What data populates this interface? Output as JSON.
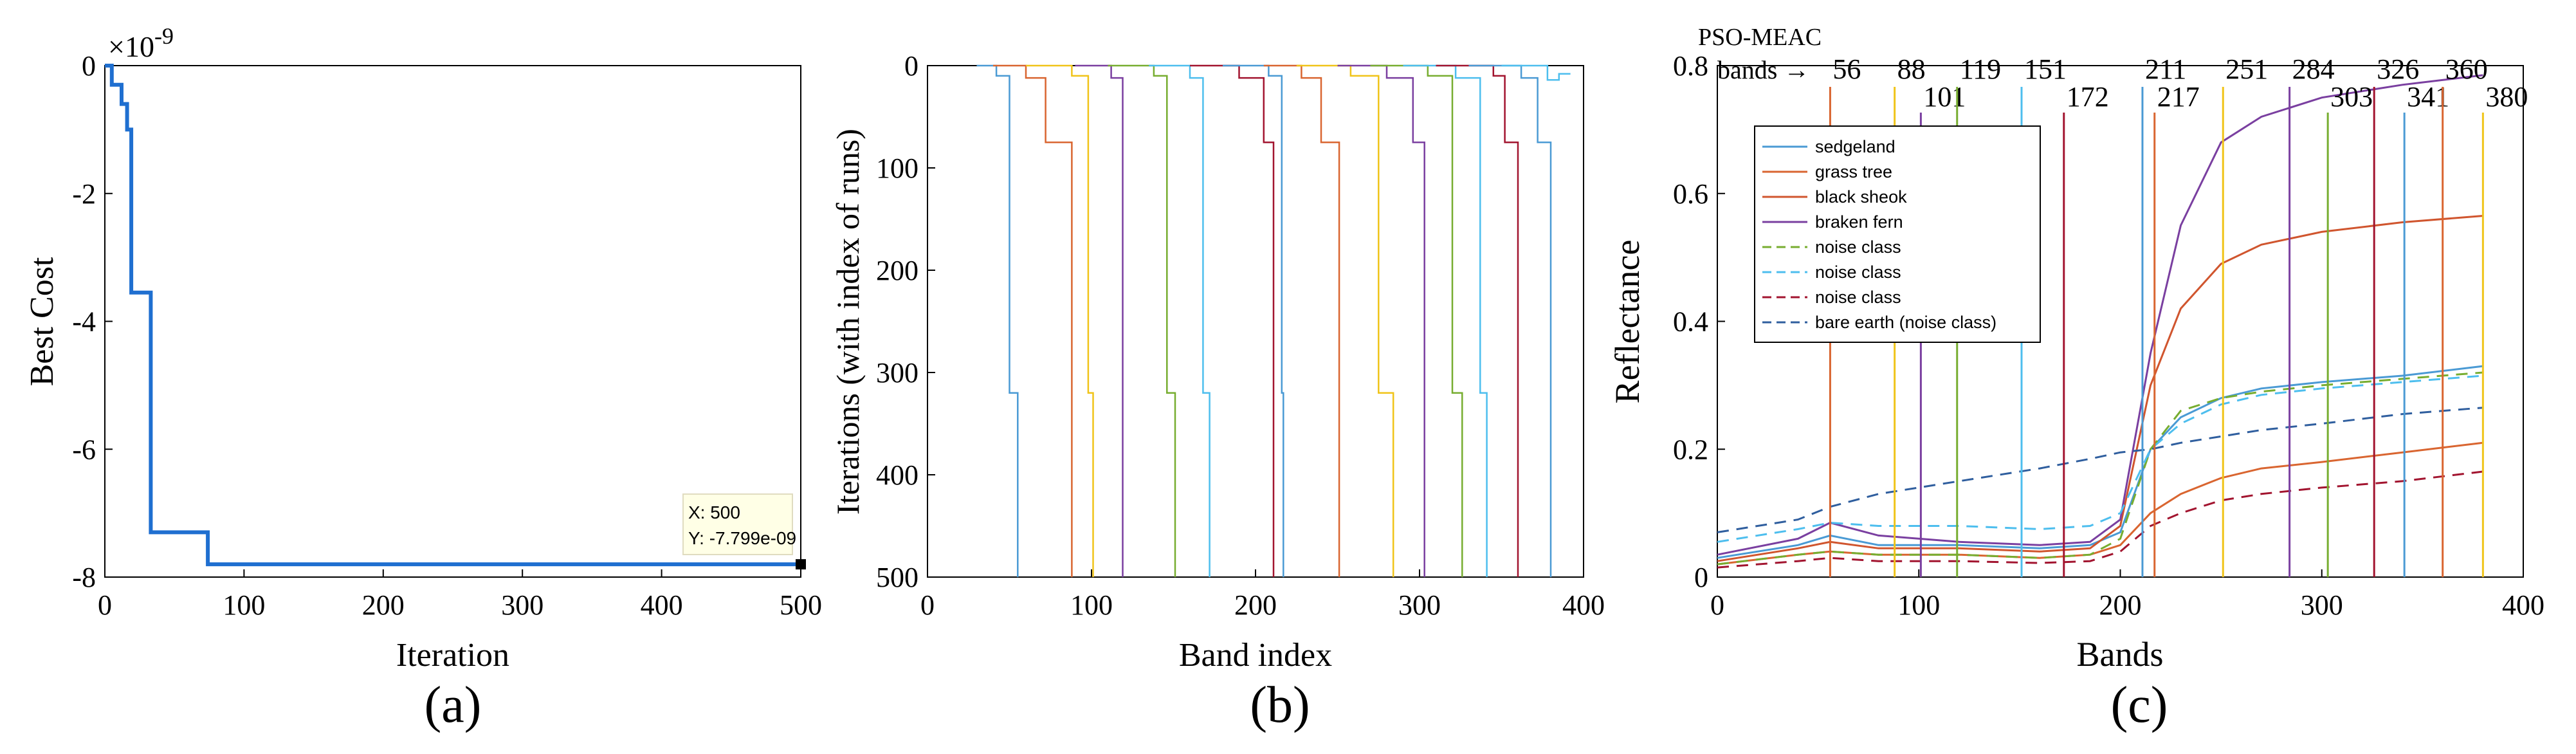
{
  "chart_data": [
    {
      "type": "line",
      "panel_label": "(a)",
      "xlabel": "Iteration",
      "ylabel": "Best Cost",
      "xlim": [
        0,
        500
      ],
      "ylim": [
        -8,
        0
      ],
      "exponent": "×10",
      "exponent_power": "-9",
      "xticks": [
        "0",
        "100",
        "200",
        "300",
        "400",
        "500"
      ],
      "yticks": [
        "0",
        "-2",
        "-4",
        "-6",
        "-8"
      ],
      "line_color": "#1f6fd0",
      "series": [
        {
          "name": "Best Cost",
          "x": [
            0,
            5,
            5,
            12,
            12,
            16,
            16,
            19,
            19,
            33,
            33,
            74,
            74,
            323,
            323,
            500
          ],
          "y": [
            0,
            0,
            -0.3,
            -0.3,
            -0.6,
            -0.6,
            -1.0,
            -1.0,
            -3.55,
            -3.55,
            -7.3,
            -7.3,
            -7.8,
            -7.8,
            -7.8,
            -7.8
          ]
        }
      ],
      "datatip": {
        "x": 500,
        "y": -7.8,
        "line1": "X: 500",
        "line2": "Y: -7.799e-09"
      }
    },
    {
      "type": "line",
      "panel_label": "(b)",
      "xlabel": "Band index",
      "ylabel": "Iterations (with index of runs)",
      "xlim": [
        0,
        400
      ],
      "ylim": [
        0,
        500
      ],
      "y_reversed": true,
      "xticks": [
        "0",
        "100",
        "200",
        "300",
        "400"
      ],
      "yticks": [
        "0",
        "100",
        "200",
        "300",
        "400",
        "500"
      ],
      "series": [
        {
          "name": "b1",
          "color": "#4a9ad4",
          "x": [
            30,
            42,
            42,
            50,
            50,
            55,
            55
          ],
          "y": [
            0,
            0,
            10,
            10,
            320,
            320,
            500
          ]
        },
        {
          "name": "b2",
          "color": "#d96530",
          "x": [
            40,
            60,
            60,
            72,
            72,
            88,
            88
          ],
          "y": [
            0,
            0,
            12,
            12,
            75,
            75,
            500
          ]
        },
        {
          "name": "b3",
          "color": "#f0c419",
          "x": [
            60,
            88,
            88,
            98,
            98,
            101,
            101
          ],
          "y": [
            0,
            0,
            10,
            10,
            320,
            320,
            500
          ]
        },
        {
          "name": "b4",
          "color": "#7a3fa0",
          "x": [
            90,
            112,
            112,
            119,
            119
          ],
          "y": [
            0,
            0,
            12,
            12,
            500
          ]
        },
        {
          "name": "b5",
          "color": "#77ad30",
          "x": [
            110,
            138,
            138,
            146,
            146,
            151,
            151
          ],
          "y": [
            0,
            0,
            10,
            10,
            320,
            320,
            500
          ]
        },
        {
          "name": "b6",
          "color": "#4dbeee",
          "x": [
            135,
            160,
            160,
            168,
            168,
            172,
            172
          ],
          "y": [
            0,
            0,
            12,
            12,
            320,
            320,
            500
          ]
        },
        {
          "name": "b7",
          "color": "#a2142f",
          "x": [
            160,
            190,
            190,
            205,
            205,
            211,
            211
          ],
          "y": [
            0,
            0,
            12,
            12,
            75,
            75,
            500
          ]
        },
        {
          "name": "b8",
          "color": "#4a9ad4",
          "x": [
            180,
            208,
            208,
            216,
            216,
            217,
            217
          ],
          "y": [
            0,
            0,
            10,
            10,
            320,
            320,
            500
          ]
        },
        {
          "name": "b9",
          "color": "#d96530",
          "x": [
            205,
            228,
            228,
            240,
            240,
            251,
            251
          ],
          "y": [
            0,
            0,
            12,
            12,
            75,
            75,
            500
          ]
        },
        {
          "name": "b10",
          "color": "#f0c419",
          "x": [
            225,
            258,
            258,
            275,
            275,
            284,
            284
          ],
          "y": [
            0,
            0,
            10,
            10,
            320,
            320,
            500
          ]
        },
        {
          "name": "b11",
          "color": "#7a3fa0",
          "x": [
            250,
            280,
            280,
            296,
            296,
            303,
            303
          ],
          "y": [
            0,
            0,
            12,
            12,
            75,
            75,
            500
          ]
        },
        {
          "name": "b12",
          "color": "#77ad30",
          "x": [
            270,
            305,
            305,
            320,
            320,
            326,
            326
          ],
          "y": [
            0,
            0,
            10,
            10,
            320,
            320,
            500
          ]
        },
        {
          "name": "b13",
          "color": "#4dbeee",
          "x": [
            290,
            322,
            322,
            337,
            337,
            341,
            341
          ],
          "y": [
            0,
            0,
            12,
            12,
            320,
            320,
            500
          ]
        },
        {
          "name": "b14",
          "color": "#a2142f",
          "x": [
            310,
            345,
            345,
            352,
            352,
            360,
            360
          ],
          "y": [
            0,
            0,
            10,
            10,
            75,
            75,
            500
          ]
        },
        {
          "name": "b15",
          "color": "#4a9ad4",
          "x": [
            330,
            362,
            362,
            372,
            372,
            380,
            380
          ],
          "y": [
            0,
            0,
            12,
            12,
            75,
            75,
            500
          ]
        },
        {
          "name": "b16",
          "color": "#4dbeee",
          "x": [
            350,
            378,
            378,
            385,
            385,
            392
          ],
          "y": [
            0,
            0,
            14,
            14,
            8,
            8
          ]
        }
      ]
    },
    {
      "type": "line",
      "panel_label": "(c)",
      "title_small": "PSO-MEAC",
      "bands_label": "bands →",
      "xlabel": "Bands",
      "ylabel": "Reflectance",
      "xlim": [
        0,
        400
      ],
      "ylim": [
        0,
        0.8
      ],
      "xticks": [
        "0",
        "100",
        "200",
        "300",
        "400"
      ],
      "yticks": [
        "0",
        "0.2",
        "0.4",
        "0.6",
        "0.8"
      ],
      "selected_bands": [
        {
          "band": 56,
          "label": "56",
          "row": 1,
          "color": "#d96530"
        },
        {
          "band": 88,
          "label": "88",
          "row": 1,
          "color": "#f0c419"
        },
        {
          "band": 101,
          "label": "101",
          "row": 2,
          "color": "#7a3fa0"
        },
        {
          "band": 119,
          "label": "119",
          "row": 1,
          "color": "#77ad30"
        },
        {
          "band": 151,
          "label": "151",
          "row": 1,
          "color": "#4dbeee"
        },
        {
          "band": 172,
          "label": "172",
          "row": 2,
          "color": "#a2142f"
        },
        {
          "band": 211,
          "label": "211",
          "row": 1,
          "color": "#4a9ad4"
        },
        {
          "band": 217,
          "label": "217",
          "row": 2,
          "color": "#d96530"
        },
        {
          "band": 251,
          "label": "251",
          "row": 1,
          "color": "#f0c419"
        },
        {
          "band": 284,
          "label": "284",
          "row": 1,
          "color": "#7a3fa0"
        },
        {
          "band": 303,
          "label": "303",
          "row": 2,
          "color": "#77ad30"
        },
        {
          "band": 326,
          "label": "326",
          "row": 1,
          "color": "#a2142f"
        },
        {
          "band": 341,
          "label": "341",
          "row": 2,
          "color": "#4a9ad4"
        },
        {
          "band": 360,
          "label": "360",
          "row": 1,
          "color": "#d96530"
        },
        {
          "band": 380,
          "label": "380",
          "row": 2,
          "color": "#f0c419"
        }
      ],
      "series": [
        {
          "name": "sedgeland",
          "color": "#4a9ad4",
          "dashed": false,
          "x": [
            0,
            40,
            56,
            80,
            120,
            160,
            185,
            200,
            215,
            230,
            250,
            270,
            300,
            340,
            380
          ],
          "y": [
            0.03,
            0.05,
            0.065,
            0.05,
            0.05,
            0.045,
            0.05,
            0.07,
            0.2,
            0.25,
            0.28,
            0.295,
            0.305,
            0.315,
            0.33
          ]
        },
        {
          "name": "grass tree",
          "color": "#d96530",
          "dashed": false,
          "x": [
            0,
            40,
            56,
            80,
            120,
            160,
            185,
            200,
            215,
            230,
            250,
            270,
            300,
            340,
            380
          ],
          "y": [
            0.02,
            0.035,
            0.04,
            0.035,
            0.035,
            0.03,
            0.035,
            0.05,
            0.1,
            0.13,
            0.155,
            0.17,
            0.18,
            0.195,
            0.21
          ]
        },
        {
          "name": "black sheok",
          "color": "#d0552e",
          "dashed": false,
          "x": [
            0,
            40,
            56,
            80,
            120,
            160,
            185,
            200,
            215,
            230,
            250,
            270,
            300,
            340,
            380
          ],
          "y": [
            0.025,
            0.045,
            0.055,
            0.045,
            0.045,
            0.04,
            0.045,
            0.08,
            0.3,
            0.42,
            0.49,
            0.52,
            0.54,
            0.555,
            0.565
          ]
        },
        {
          "name": "braken fern",
          "color": "#7a3fa0",
          "dashed": false,
          "x": [
            0,
            40,
            56,
            80,
            120,
            160,
            185,
            200,
            215,
            230,
            250,
            270,
            300,
            340,
            380
          ],
          "y": [
            0.035,
            0.06,
            0.085,
            0.065,
            0.055,
            0.05,
            0.055,
            0.09,
            0.35,
            0.55,
            0.68,
            0.72,
            0.75,
            0.77,
            0.785
          ]
        },
        {
          "name": "noise class",
          "color": "#77ad30",
          "dashed": true,
          "x": [
            0,
            40,
            56,
            80,
            120,
            160,
            185,
            200,
            215,
            230,
            250,
            270,
            300,
            340,
            380
          ],
          "y": [
            0.02,
            0.035,
            0.04,
            0.035,
            0.035,
            0.03,
            0.035,
            0.06,
            0.2,
            0.26,
            0.28,
            0.29,
            0.3,
            0.31,
            0.32
          ]
        },
        {
          "name": "noise class",
          "color": "#4dbeee",
          "dashed": true,
          "x": [
            0,
            40,
            56,
            80,
            120,
            160,
            185,
            200,
            215,
            230,
            250,
            270,
            300,
            340,
            380
          ],
          "y": [
            0.055,
            0.075,
            0.085,
            0.08,
            0.08,
            0.075,
            0.08,
            0.1,
            0.2,
            0.24,
            0.27,
            0.285,
            0.295,
            0.305,
            0.315
          ]
        },
        {
          "name": "noise class",
          "color": "#a2142f",
          "dashed": true,
          "x": [
            0,
            40,
            56,
            80,
            120,
            160,
            185,
            200,
            215,
            230,
            250,
            270,
            300,
            340,
            380
          ],
          "y": [
            0.015,
            0.025,
            0.03,
            0.025,
            0.025,
            0.022,
            0.025,
            0.04,
            0.08,
            0.1,
            0.12,
            0.13,
            0.14,
            0.15,
            0.165
          ]
        },
        {
          "name": "bare earth (noise class)",
          "color": "#2f5e9e",
          "dashed": true,
          "x": [
            0,
            40,
            56,
            80,
            120,
            160,
            185,
            200,
            215,
            230,
            250,
            270,
            300,
            340,
            380
          ],
          "y": [
            0.07,
            0.09,
            0.11,
            0.13,
            0.15,
            0.17,
            0.185,
            0.195,
            0.2,
            0.21,
            0.22,
            0.23,
            0.24,
            0.255,
            0.265
          ]
        }
      ]
    }
  ]
}
